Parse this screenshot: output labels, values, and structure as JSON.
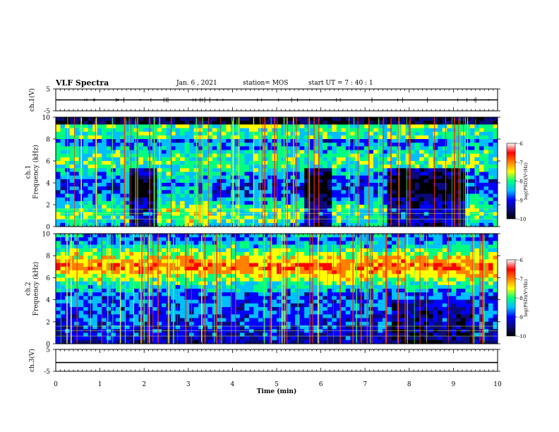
{
  "header": {
    "title": "VLF Spectra",
    "date": "Jan. 6 , 2021",
    "station": "station= MOS",
    "start_ut": "start UT = 7 : 40 : 1"
  },
  "chart_data": {
    "type": "heatmap",
    "title": "VLF Spectra",
    "xlabel": "Time (min)",
    "xlim": [
      0,
      10
    ],
    "x_ticks": [
      "0",
      "1",
      "2",
      "3",
      "4",
      "5",
      "6",
      "7",
      "8",
      "9",
      "10"
    ],
    "panels": [
      {
        "id": "ch1-waveform",
        "ylabel": "ch.1(V)",
        "y_ticks": [
          "5",
          "-5"
        ],
        "ylim": [
          -5,
          5
        ],
        "trace_level": 0
      },
      {
        "id": "ch1-spectrogram",
        "ylabel": "ch.1\nFrequency (kHz)",
        "ylabel_lines": [
          "ch.1",
          "Frequency (kHz)"
        ],
        "y_ticks": [
          "0",
          "2",
          "4",
          "6",
          "8",
          "10"
        ],
        "ylim": [
          0,
          10
        ],
        "description": "broadband sferic noise 0-10 kHz, strongest band 8-9 kHz; quieter intervals around 1.7-2.3, 5.6-6.3 and 7.5-9.3 min",
        "colorbar": {
          "label": "log(PSD)(V²/Hz)",
          "ticks": [
            "-6",
            "-7",
            "-8",
            "-9",
            "-10"
          ],
          "range": [
            -10,
            -6
          ]
        }
      },
      {
        "id": "ch2-spectrogram",
        "ylabel": "ch.2\nFrequency (kHz)",
        "ylabel_lines": [
          "ch.2",
          "Frequency (kHz)"
        ],
        "y_ticks": [
          "0",
          "2",
          "4",
          "6",
          "8",
          "10"
        ],
        "ylim": [
          0,
          10
        ],
        "description": "persistent intense band 5-9 kHz centred near 7 kHz across the whole interval",
        "colorbar": {
          "label": "log(PSD)(V²/Hz)",
          "ticks": [
            "-6",
            "-7",
            "-8",
            "-9",
            "-10"
          ],
          "range": [
            -10,
            -6
          ]
        }
      },
      {
        "id": "ch3-waveform",
        "ylabel": "ch.3(V)",
        "y_ticks": [
          "5",
          "-5"
        ],
        "ylim": [
          -5,
          5
        ],
        "trace_level": -1
      }
    ],
    "colormap": [
      "#000000",
      "#0a0a7a",
      "#0000ff",
      "#00bfff",
      "#00ff80",
      "#ffff00",
      "#ff8000",
      "#ff0000",
      "#ffffff"
    ]
  }
}
